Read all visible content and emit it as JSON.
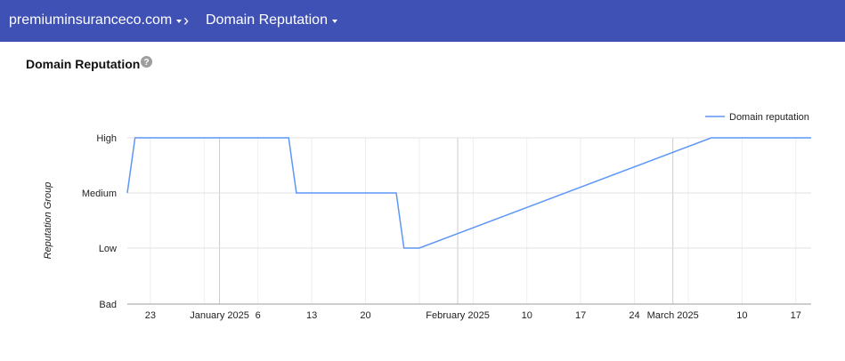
{
  "header": {
    "domain": "premiuminsuranceco.com",
    "separator": "›",
    "report": "Domain Reputation"
  },
  "page": {
    "title": "Domain Reputation",
    "help_icon": "help-circle-icon"
  },
  "colors": {
    "header_bg": "#3f51b5",
    "series_line": "#5e97f6",
    "gridline": "#e0e0e0"
  },
  "chart_data": {
    "type": "line",
    "title": "",
    "ylabel": "Reputation Group",
    "xlabel": "",
    "y_categories": [
      "Bad",
      "Low",
      "Medium",
      "High"
    ],
    "x_tick_labels": [
      "23",
      "January 2025",
      "6",
      "13",
      "20",
      "February 2025",
      "10",
      "17",
      "24",
      "March 2025",
      "10",
      "17"
    ],
    "x_ticks": [
      "2024-12-23",
      "2025-01-01",
      "2025-01-06",
      "2025-01-13",
      "2025-01-20",
      "2025-02-01",
      "2025-02-10",
      "2025-02-17",
      "2025-02-24",
      "2025-03-01",
      "2025-03-10",
      "2025-03-17"
    ],
    "xlim": [
      "2024-12-20",
      "2025-03-19"
    ],
    "legend_position": "top-right",
    "grid": true,
    "series": [
      {
        "name": "Domain reputation",
        "points": [
          {
            "x": "2024-12-20",
            "y": "Medium"
          },
          {
            "x": "2024-12-21",
            "y": "High"
          },
          {
            "x": "2025-01-10",
            "y": "High"
          },
          {
            "x": "2025-01-11",
            "y": "Medium"
          },
          {
            "x": "2025-01-24",
            "y": "Medium"
          },
          {
            "x": "2025-01-25",
            "y": "Low"
          },
          {
            "x": "2025-01-27",
            "y": "Low"
          },
          {
            "x": "2025-03-06",
            "y": "High"
          },
          {
            "x": "2025-03-19",
            "y": "High"
          }
        ]
      }
    ]
  }
}
